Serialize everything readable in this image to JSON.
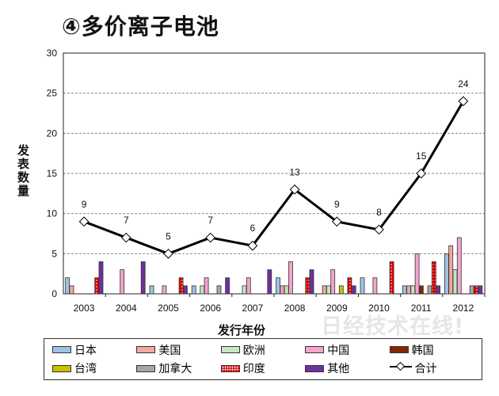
{
  "title": "④多价离子电池",
  "watermark": "日经技术在线!",
  "chart_data": {
    "type": "bar",
    "xlabel": "发行年份",
    "ylabel": "发表数量",
    "ylim": [
      0,
      30
    ],
    "yticks": [
      0,
      5,
      10,
      15,
      20,
      25,
      30
    ],
    "grid": "horizontal dashed",
    "legend": "bottom",
    "categories": [
      "2003",
      "2004",
      "2005",
      "2006",
      "2007",
      "2008",
      "2009",
      "2010",
      "2011",
      "2012"
    ],
    "series": [
      {
        "name": "日本",
        "color": "#9dc3e6",
        "values": [
          2,
          0,
          1,
          1,
          0,
          2,
          0,
          2,
          1,
          5
        ]
      },
      {
        "name": "美国",
        "color": "#f4a6a0",
        "values": [
          1,
          0,
          0,
          0,
          0,
          1,
          1,
          0,
          1,
          6
        ]
      },
      {
        "name": "欧洲",
        "color": "#c6e6c0",
        "values": [
          0,
          0,
          0,
          1,
          1,
          1,
          1,
          0,
          1,
          3
        ]
      },
      {
        "name": "中国",
        "color": "#f5a3cf",
        "values": [
          0,
          3,
          1,
          2,
          2,
          4,
          3,
          2,
          5,
          7
        ]
      },
      {
        "name": "韩国",
        "color": "#8b2500",
        "values": [
          0,
          0,
          0,
          0,
          0,
          0,
          0,
          0,
          1,
          0
        ]
      },
      {
        "name": "台湾",
        "color": "#c8c000",
        "values": [
          0,
          0,
          0,
          0,
          0,
          0,
          1,
          0,
          0,
          0
        ]
      },
      {
        "name": "加拿大",
        "color": "#a6a6a6",
        "values": [
          0,
          0,
          0,
          1,
          0,
          0,
          0,
          0,
          1,
          1
        ]
      },
      {
        "name": "印度",
        "color": "#e00000",
        "pattern": "dots",
        "values": [
          2,
          0,
          2,
          0,
          0,
          2,
          2,
          4,
          4,
          1
        ]
      },
      {
        "name": "其他",
        "color": "#7030a0",
        "values": [
          4,
          4,
          1,
          2,
          3,
          3,
          1,
          0,
          1,
          1
        ]
      }
    ],
    "line": {
      "name": "合计",
      "color": "#000000",
      "values": [
        9,
        7,
        5,
        7,
        6,
        13,
        9,
        8,
        15,
        24
      ]
    }
  }
}
